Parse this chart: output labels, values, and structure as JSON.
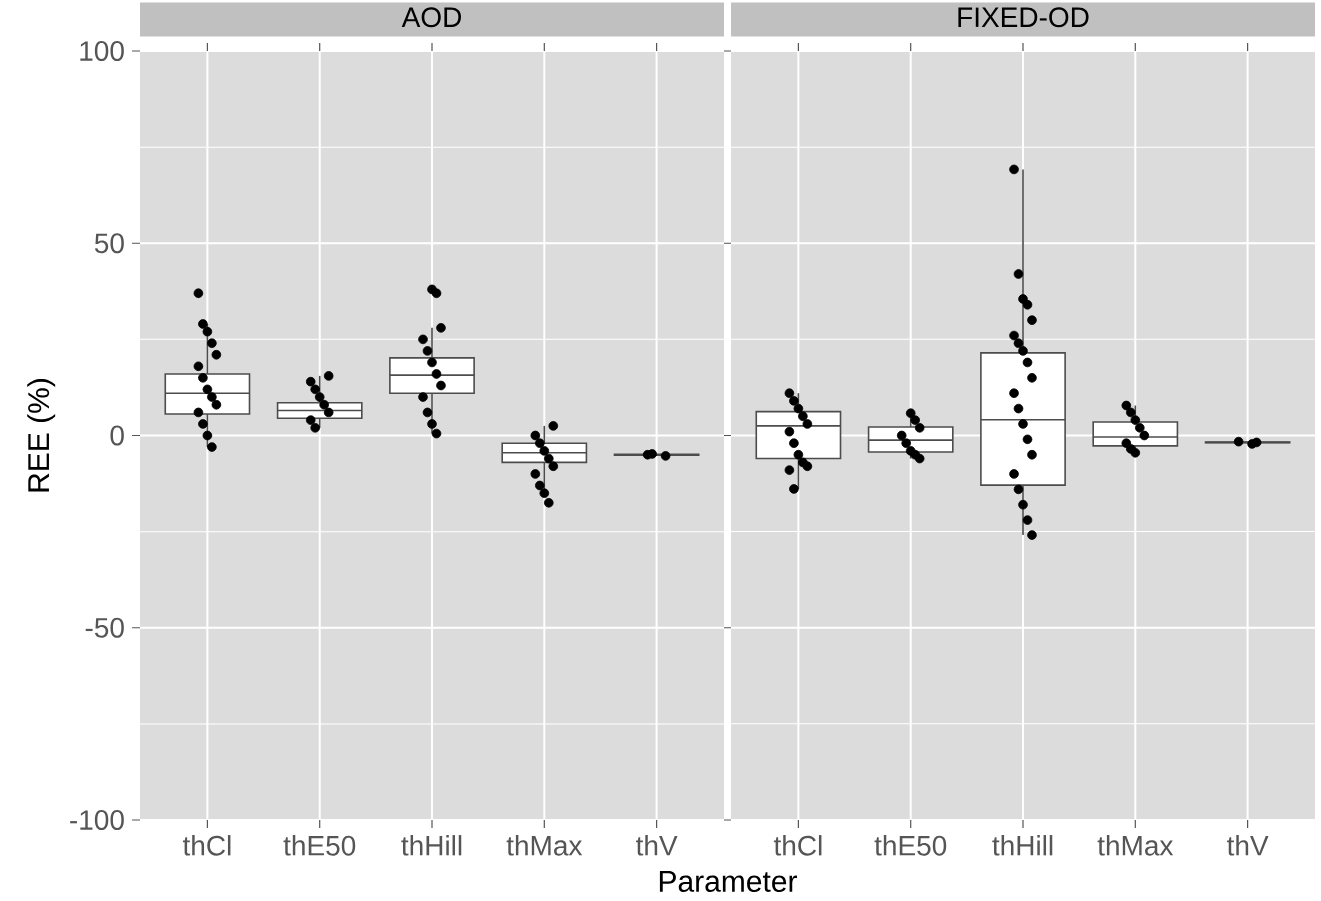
{
  "chart_data": [
    {
      "type": "box",
      "title": "AOD",
      "xlabel": "Parameter",
      "ylabel": "REE (%)",
      "categories": [
        "thCl",
        "thE50",
        "thHill",
        "thMax",
        "thV"
      ],
      "ylim": [
        -100,
        100
      ],
      "yticks": [
        -100,
        -50,
        0,
        50,
        100
      ],
      "grid": true,
      "boxes": [
        {
          "low": -3,
          "q1": 5.6,
          "median": 11,
          "q3": 16,
          "high": 29
        },
        {
          "low": 2,
          "q1": 4.5,
          "median": 6.5,
          "q3": 8.5,
          "high": 15.5
        },
        {
          "low": 0.5,
          "q1": 11,
          "median": 15.7,
          "q3": 20.2,
          "high": 28
        },
        {
          "low": -14,
          "q1": -7,
          "median": -4.5,
          "q3": -2,
          "high": 2.5
        },
        {
          "low": -5.3,
          "q1": -5.1,
          "median": -5,
          "q3": -4.9,
          "high": -4.8
        }
      ],
      "series": [
        {
          "type": "scatter",
          "color": "#000000",
          "x": [
            "thCl",
            "thCl",
            "thCl",
            "thCl",
            "thCl",
            "thCl",
            "thCl",
            "thCl",
            "thCl",
            "thCl",
            "thCl",
            "thCl",
            "thCl",
            "thCl",
            "thE50",
            "thE50",
            "thE50",
            "thE50",
            "thE50",
            "thE50",
            "thE50",
            "thE50",
            "thHill",
            "thHill",
            "thHill",
            "thHill",
            "thHill",
            "thHill",
            "thHill",
            "thHill",
            "thHill",
            "thHill",
            "thHill",
            "thHill",
            "thMax",
            "thMax",
            "thMax",
            "thMax",
            "thMax",
            "thMax",
            "thMax",
            "thMax",
            "thMax",
            "thMax",
            "thV",
            "thV",
            "thV"
          ],
          "values": [
            37,
            29,
            27,
            24,
            21,
            18,
            15,
            12,
            10,
            8,
            6,
            3,
            0,
            -3,
            15.5,
            14,
            12,
            10,
            8,
            6,
            4,
            2,
            38,
            37,
            28,
            25,
            22,
            19,
            16,
            13,
            10,
            6,
            3,
            0.5,
            2.5,
            0,
            -2,
            -4,
            -6,
            -8,
            -10,
            -13,
            -15,
            -17.5,
            -5.3,
            -5,
            -4.8
          ]
        }
      ]
    },
    {
      "type": "box",
      "title": "FIXED-OD",
      "categories": [
        "thCl",
        "thE50",
        "thHill",
        "thMax",
        "thV"
      ],
      "ylim": [
        -100,
        100
      ],
      "yticks": [
        -100,
        -50,
        0,
        50,
        100
      ],
      "grid": true,
      "tick_labels": "x",
      "boxes": [
        {
          "low": -13.9,
          "q1": -6,
          "median": 2.5,
          "q3": 6.2,
          "high": 11
        },
        {
          "low": -6,
          "q1": -4.3,
          "median": -1.2,
          "q3": 2.2,
          "high": 5.8
        },
        {
          "low": -25.9,
          "q1": -12.9,
          "median": 4.1,
          "q3": 21.5,
          "high": 69.2
        },
        {
          "low": -4.5,
          "q1": -2.7,
          "median": -0.4,
          "q3": 3.5,
          "high": 7.8
        },
        {
          "low": -1.9,
          "q1": -1.9,
          "median": -1.8,
          "q3": -1.7,
          "high": -1.7
        }
      ],
      "series": [
        {
          "type": "scatter",
          "color": "#000000",
          "x": [
            "thCl",
            "thCl",
            "thCl",
            "thCl",
            "thCl",
            "thCl",
            "thCl",
            "thCl",
            "thCl",
            "thCl",
            "thCl",
            "thCl",
            "thE50",
            "thE50",
            "thE50",
            "thE50",
            "thE50",
            "thE50",
            "thE50",
            "thE50",
            "thHill",
            "thHill",
            "thHill",
            "thHill",
            "thHill",
            "thHill",
            "thHill",
            "thHill",
            "thHill",
            "thHill",
            "thHill",
            "thHill",
            "thHill",
            "thHill",
            "thHill",
            "thHill",
            "thHill",
            "thHill",
            "thHill",
            "thHill",
            "thMax",
            "thMax",
            "thMax",
            "thMax",
            "thMax",
            "thMax",
            "thMax",
            "thMax",
            "thV",
            "thV",
            "thV"
          ],
          "values": [
            11,
            9,
            7,
            5,
            3,
            1,
            -2,
            -5,
            -7,
            -8,
            -9,
            -13.9,
            5.8,
            4,
            2,
            0,
            -2,
            -4,
            -5,
            -6,
            69.2,
            42,
            35.5,
            34,
            30,
            26,
            24,
            22,
            19,
            15,
            11,
            7,
            3,
            -1,
            -5,
            -10,
            -14,
            -18,
            -22,
            -25.9,
            7.8,
            6,
            4,
            2,
            0,
            -2,
            -3.5,
            -4.5,
            -2.2,
            -1.8,
            -1.6
          ]
        }
      ]
    }
  ]
}
